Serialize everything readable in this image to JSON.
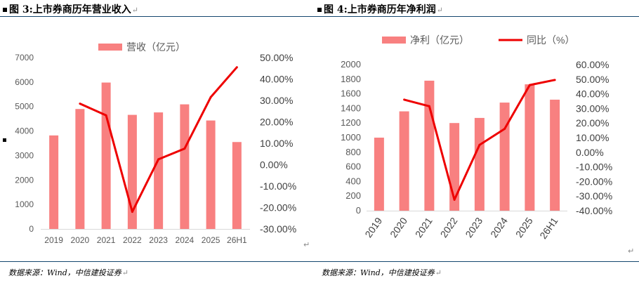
{
  "figures": [
    {
      "title": "图 3:上市券商历年营业收入",
      "source": "数据来源：Wind，中信建投证券"
    },
    {
      "title": "图 4:上市券商历年净利润",
      "source": "数据来源：Wind，中信建投证券"
    }
  ],
  "return_mark": "↵",
  "colors": {
    "bar": "#f88080",
    "line": "#ee0000",
    "rule": "#14466e",
    "axis": "#d9d9d9"
  },
  "chart_data": [
    {
      "type": "bar",
      "categories": [
        "2019",
        "2020",
        "2021",
        "2022",
        "2023",
        "2024",
        "2025",
        "26H1"
      ],
      "series": [
        {
          "name": "营收（亿元）",
          "type": "bar",
          "axis": "left",
          "values": [
            3820,
            4900,
            5980,
            4660,
            4760,
            5090,
            4430,
            3550
          ]
        },
        {
          "name": "",
          "type": "line",
          "axis": "right",
          "values": [
            null,
            28.5,
            23.0,
            -22.0,
            2.5,
            7.5,
            31.5,
            45.5
          ]
        }
      ],
      "y_left": {
        "min": 0,
        "max": 7000,
        "ticks": [
          "0",
          "1000",
          "2000",
          "3000",
          "4000",
          "5000",
          "6000",
          "7000"
        ]
      },
      "y_right": {
        "min": -30,
        "max": 50,
        "ticks": [
          "-30.00%",
          "-20.00%",
          "-10.00%",
          "0.00%",
          "10.00%",
          "20.00%",
          "30.00%",
          "40.00%",
          "50.00%"
        ]
      },
      "legend": [
        "营收（亿元）"
      ],
      "legend_position": "top",
      "grid": false
    },
    {
      "type": "bar",
      "categories": [
        "2019",
        "2020",
        "2021",
        "2022",
        "2023",
        "2024",
        "2025",
        "26H1"
      ],
      "series": [
        {
          "name": "净利（亿元）",
          "type": "bar",
          "axis": "left",
          "values": [
            1000,
            1360,
            1780,
            1200,
            1270,
            1480,
            1730,
            1520
          ]
        },
        {
          "name": "同比（%）",
          "type": "line",
          "axis": "right",
          "values": [
            null,
            36.0,
            31.5,
            -32.5,
            5.0,
            16.0,
            46.0,
            49.5
          ]
        }
      ],
      "y_left": {
        "min": 0,
        "max": 2000,
        "ticks": [
          "0",
          "200",
          "400",
          "600",
          "800",
          "1000",
          "1200",
          "1400",
          "1600",
          "1800",
          "2000"
        ]
      },
      "y_right": {
        "min": -40,
        "max": 60,
        "ticks": [
          "-40.00%",
          "-30.00%",
          "-20.00%",
          "-10.00%",
          "0.00%",
          "10.00%",
          "20.00%",
          "30.00%",
          "40.00%",
          "50.00%",
          "60.00%"
        ]
      },
      "legend": [
        "净利（亿元）",
        "同比（%）"
      ],
      "legend_position": "top",
      "grid": false
    }
  ]
}
